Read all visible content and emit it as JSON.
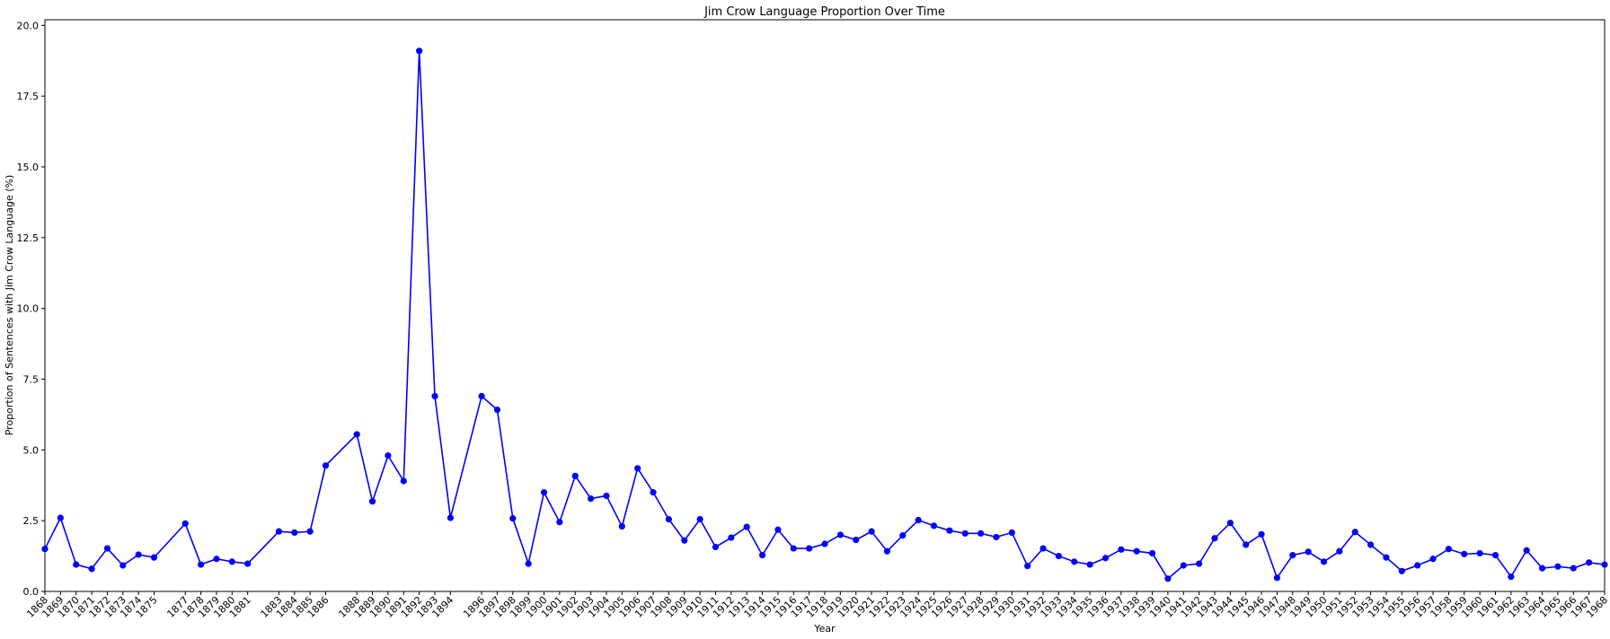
{
  "chart_data": {
    "type": "line",
    "title": "Jim Crow Language Proportion Over Time",
    "xlabel": "Year",
    "ylabel": "Proportion of Sentences with Jim Crow Language (%)",
    "xlim": [
      1868,
      1968
    ],
    "ylim": [
      0,
      20.2
    ],
    "yticks": [
      "0.0",
      "2.5",
      "5.0",
      "7.5",
      "10.0",
      "12.5",
      "15.0",
      "17.5",
      "20.0"
    ],
    "grid": false,
    "legend": false,
    "series": [
      {
        "color": "#0000ff",
        "marker": "circle",
        "points": [
          [
            1868,
            1.5
          ],
          [
            1869,
            2.6
          ],
          [
            1870,
            0.95
          ],
          [
            1871,
            0.8
          ],
          [
            1872,
            1.52
          ],
          [
            1873,
            0.92
          ],
          [
            1874,
            1.3
          ],
          [
            1875,
            1.2
          ],
          [
            1877,
            2.4
          ],
          [
            1878,
            0.95
          ],
          [
            1879,
            1.15
          ],
          [
            1880,
            1.05
          ],
          [
            1881,
            0.98
          ],
          [
            1883,
            2.12
          ],
          [
            1884,
            2.08
          ],
          [
            1885,
            2.12
          ],
          [
            1886,
            4.45
          ],
          [
            1888,
            5.55
          ],
          [
            1889,
            3.18
          ],
          [
            1890,
            4.8
          ],
          [
            1891,
            3.9
          ],
          [
            1892,
            19.1
          ],
          [
            1893,
            6.9
          ],
          [
            1894,
            2.6
          ],
          [
            1896,
            6.9
          ],
          [
            1897,
            6.42
          ],
          [
            1898,
            2.58
          ],
          [
            1899,
            0.98
          ],
          [
            1900,
            3.5
          ],
          [
            1901,
            2.45
          ],
          [
            1902,
            4.08
          ],
          [
            1903,
            3.28
          ],
          [
            1904,
            3.38
          ],
          [
            1905,
            2.3
          ],
          [
            1906,
            4.35
          ],
          [
            1907,
            3.5
          ],
          [
            1908,
            2.55
          ],
          [
            1909,
            1.8
          ],
          [
            1910,
            2.55
          ],
          [
            1911,
            1.57
          ],
          [
            1912,
            1.9
          ],
          [
            1913,
            2.28
          ],
          [
            1914,
            1.28
          ],
          [
            1915,
            2.18
          ],
          [
            1916,
            1.52
          ],
          [
            1917,
            1.52
          ],
          [
            1918,
            1.68
          ],
          [
            1919,
            2.0
          ],
          [
            1920,
            1.82
          ],
          [
            1921,
            2.12
          ],
          [
            1922,
            1.42
          ],
          [
            1923,
            1.98
          ],
          [
            1924,
            2.52
          ],
          [
            1925,
            2.32
          ],
          [
            1926,
            2.15
          ],
          [
            1927,
            2.05
          ],
          [
            1928,
            2.05
          ],
          [
            1929,
            1.92
          ],
          [
            1930,
            2.08
          ],
          [
            1931,
            0.9
          ],
          [
            1932,
            1.52
          ],
          [
            1933,
            1.25
          ],
          [
            1934,
            1.05
          ],
          [
            1935,
            0.95
          ],
          [
            1936,
            1.18
          ],
          [
            1937,
            1.48
          ],
          [
            1938,
            1.42
          ],
          [
            1939,
            1.35
          ],
          [
            1940,
            0.45
          ],
          [
            1941,
            0.92
          ],
          [
            1942,
            0.98
          ],
          [
            1943,
            1.88
          ],
          [
            1944,
            2.42
          ],
          [
            1945,
            1.65
          ],
          [
            1946,
            2.02
          ],
          [
            1947,
            0.48
          ],
          [
            1948,
            1.28
          ],
          [
            1949,
            1.4
          ],
          [
            1950,
            1.05
          ],
          [
            1951,
            1.42
          ],
          [
            1952,
            2.1
          ],
          [
            1953,
            1.65
          ],
          [
            1954,
            1.2
          ],
          [
            1955,
            0.72
          ],
          [
            1956,
            0.92
          ],
          [
            1957,
            1.15
          ],
          [
            1958,
            1.5
          ],
          [
            1959,
            1.32
          ],
          [
            1960,
            1.35
          ],
          [
            1961,
            1.28
          ],
          [
            1962,
            0.52
          ],
          [
            1963,
            1.45
          ],
          [
            1964,
            0.82
          ],
          [
            1965,
            0.88
          ],
          [
            1966,
            0.82
          ],
          [
            1967,
            1.02
          ],
          [
            1968,
            0.95
          ]
        ]
      }
    ]
  }
}
